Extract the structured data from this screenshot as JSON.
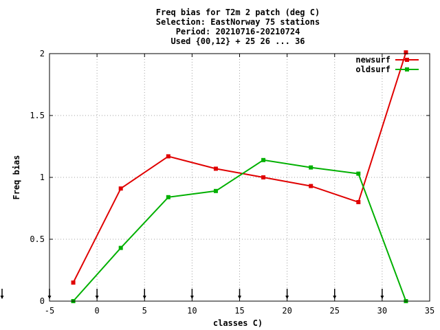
{
  "chart_data": {
    "type": "line",
    "title_lines": [
      "Freq bias  for T2m 2 patch (deg C)",
      "Selection: EastNorway     75 stations",
      "Period: 20210716-20210724",
      "Used {00,12} + 25 26 ... 36"
    ],
    "xlabel": "classes C)",
    "ylabel": "Freq bias",
    "xlim": [
      -5,
      35
    ],
    "ylim": [
      0,
      2
    ],
    "xticks": [
      -5,
      0,
      5,
      10,
      15,
      20,
      25,
      30,
      35
    ],
    "yticks": [
      0,
      0.5,
      1,
      1.5,
      2
    ],
    "xtick_labels": [
      "-5",
      "0",
      "5",
      "10",
      "15",
      "20",
      "25",
      "30",
      "35"
    ],
    "ytick_labels": [
      "0",
      "0.5",
      "1",
      "1.5",
      "2"
    ],
    "grid": true,
    "legend_position": "top-right",
    "class_boundary_arrows": [
      -5,
      0,
      5,
      10,
      15,
      20,
      25,
      30
    ],
    "series": [
      {
        "name": "newsurf",
        "color": "#e00000",
        "x": [
          -2.5,
          2.5,
          7.5,
          12.5,
          17.5,
          22.5,
          27.5,
          32.5
        ],
        "values": [
          0.15,
          0.91,
          1.17,
          1.07,
          1.0,
          0.93,
          0.8,
          2.01
        ]
      },
      {
        "name": "oldsurf",
        "color": "#00b000",
        "x": [
          -2.5,
          2.5,
          7.5,
          12.5,
          17.5,
          22.5,
          27.5,
          32.5
        ],
        "values": [
          0.0,
          0.43,
          0.84,
          0.89,
          1.14,
          1.08,
          1.03,
          0.0
        ]
      }
    ]
  }
}
